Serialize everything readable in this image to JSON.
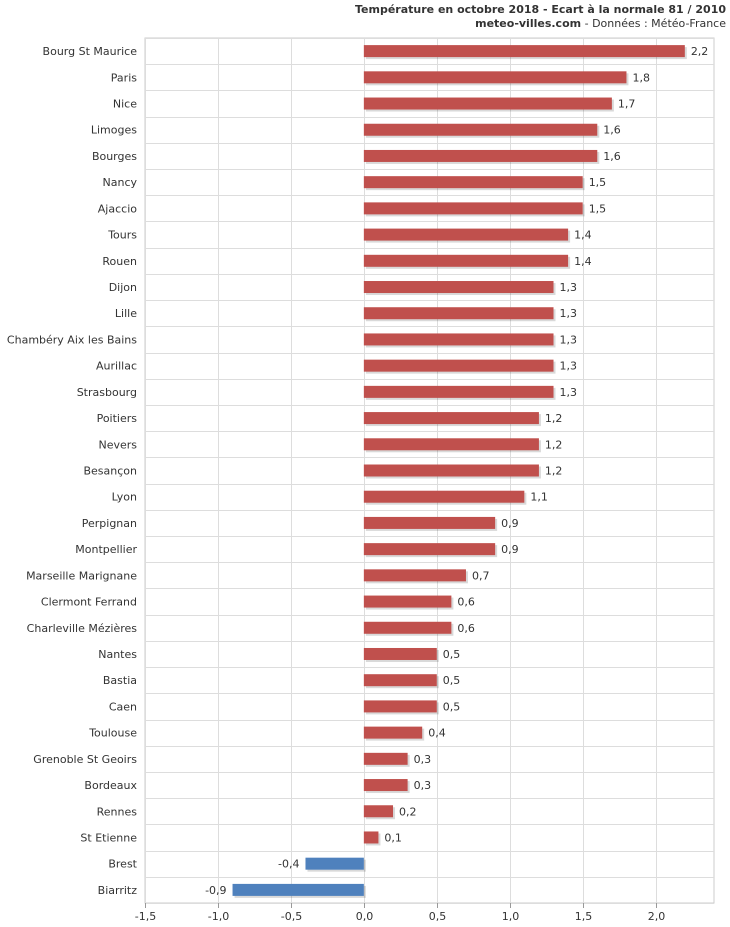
{
  "header": {
    "title": "Température en octobre 2018 - Ecart à la normale 81 / 2010",
    "site": "meteo-villes.com",
    "source": " - Données : Météo-France"
  },
  "colors": {
    "positive": "#c0504d",
    "negative": "#4f81bd",
    "grid": "#dddddd"
  },
  "chart_data": {
    "type": "bar",
    "orientation": "horizontal",
    "title": "Température en octobre 2018 - Ecart à la normale 81 / 2010",
    "xlim": [
      -1.5,
      2.4
    ],
    "xticks": [
      -1.5,
      -1.0,
      -0.5,
      0.0,
      0.5,
      1.0,
      1.5,
      2.0
    ],
    "xtick_labels": [
      "-1,5",
      "-1,0",
      "-0,5",
      "0,0",
      "0,5",
      "1,0",
      "1,5",
      "2,0"
    ],
    "grid": true,
    "categories": [
      "Bourg St Maurice",
      "Paris",
      "Nice",
      "Limoges",
      "Bourges",
      "Nancy",
      "Ajaccio",
      "Tours",
      "Rouen",
      "Dijon",
      "Lille",
      "Chambéry Aix les Bains",
      "Aurillac",
      "Strasbourg",
      "Poitiers",
      "Nevers",
      "Besançon",
      "Lyon",
      "Perpignan",
      "Montpellier",
      "Marseille Marignane",
      "Clermont Ferrand",
      "Charleville Mézières",
      "Nantes",
      "Bastia",
      "Caen",
      "Toulouse",
      "Grenoble St Geoirs",
      "Bordeaux",
      "Rennes",
      "St Etienne",
      "Brest",
      "Biarritz"
    ],
    "values": [
      2.2,
      1.8,
      1.7,
      1.6,
      1.6,
      1.5,
      1.5,
      1.4,
      1.4,
      1.3,
      1.3,
      1.3,
      1.3,
      1.3,
      1.2,
      1.2,
      1.2,
      1.1,
      0.9,
      0.9,
      0.7,
      0.6,
      0.6,
      0.5,
      0.5,
      0.5,
      0.4,
      0.3,
      0.3,
      0.2,
      0.1,
      -0.4,
      -0.9
    ],
    "value_labels": [
      "2,2",
      "1,8",
      "1,7",
      "1,6",
      "1,6",
      "1,5",
      "1,5",
      "1,4",
      "1,4",
      "1,3",
      "1,3",
      "1,3",
      "1,3",
      "1,3",
      "1,2",
      "1,2",
      "1,2",
      "1,1",
      "0,9",
      "0,9",
      "0,7",
      "0,6",
      "0,6",
      "0,5",
      "0,5",
      "0,5",
      "0,4",
      "0,3",
      "0,3",
      "0,2",
      "0,1",
      "-0,4",
      "-0,9"
    ]
  }
}
